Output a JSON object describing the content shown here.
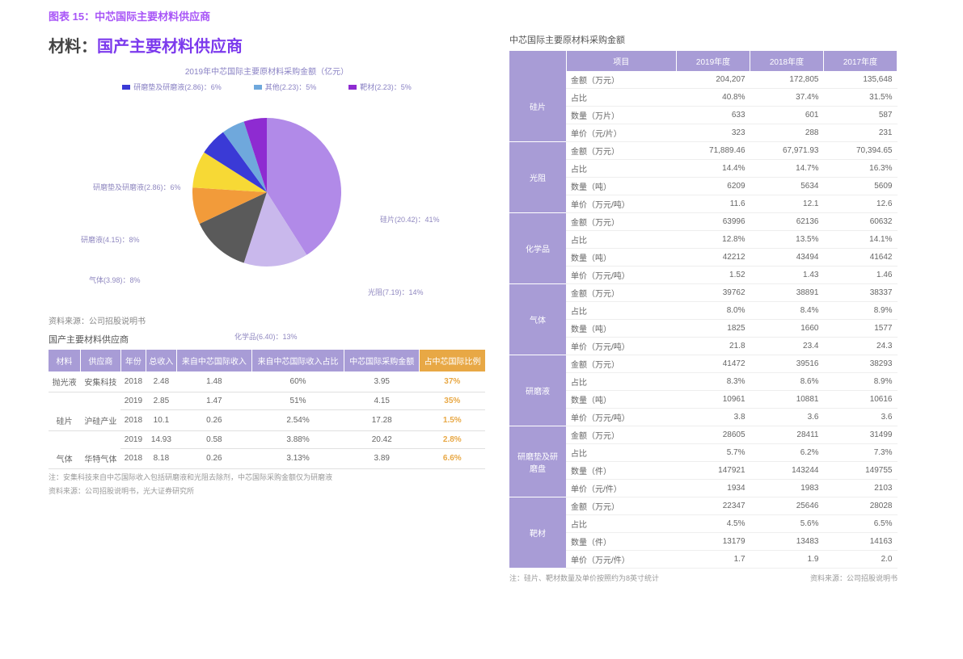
{
  "figure_caption": "图表 15：中芯国际主要材料供应商",
  "section_title_prefix": "材料：",
  "section_title_main": "国产主要材料供应商",
  "pie": {
    "subtitle": "2019年中芯国际主要原材料采购金额（亿元）",
    "type": "pie",
    "background_color": "#ffffff",
    "label_fontsize": 9,
    "label_color": "#8a82c4",
    "slices": [
      {
        "label": "硅片(20.42)：41%",
        "value": 41,
        "color": "#b18ae8"
      },
      {
        "label": "光阻(7.19)：14%",
        "value": 14,
        "color": "#c9b8ec"
      },
      {
        "label": "化学品(6.40)：13%",
        "value": 13,
        "color": "#5a5a5a"
      },
      {
        "label": "气体(3.98)：8%",
        "value": 8,
        "color": "#f29b3a"
      },
      {
        "label": "研磨液(4.15)：8%",
        "value": 8,
        "color": "#f7d935"
      },
      {
        "label": "研磨垫及研磨液(2.86)：6%",
        "value": 6,
        "color": "#3a3ad6"
      },
      {
        "label": "其他(2.23)：5%",
        "value": 5,
        "color": "#6fa8dc"
      },
      {
        "label": "靶材(2.23)：5%",
        "value": 5,
        "color": "#8e2bd1"
      }
    ],
    "source": "资料来源：公司招股说明书"
  },
  "supplier_section_title": "国产主要材料供应商",
  "supplier_table": {
    "columns": [
      "材料",
      "供应商",
      "年份",
      "总收入",
      "来自中芯国际收入",
      "来自中芯国际收入占比",
      "中芯国际采购金额",
      "占中芯国际比例"
    ],
    "rows": [
      {
        "material": "抛光液",
        "supplier": "安集科技",
        "year": "2018",
        "total": "2.48",
        "rev": "1.48",
        "rev_pct": "60%",
        "purchase": "3.95",
        "share": "37%"
      },
      {
        "material": "",
        "supplier": "",
        "year": "2019",
        "total": "2.85",
        "rev": "1.47",
        "rev_pct": "51%",
        "purchase": "4.15",
        "share": "35%"
      },
      {
        "material": "硅片",
        "supplier": "沪硅产业",
        "year": "2018",
        "total": "10.1",
        "rev": "0.26",
        "rev_pct": "2.54%",
        "purchase": "17.28",
        "share": "1.5%"
      },
      {
        "material": "",
        "supplier": "",
        "year": "2019",
        "total": "14.93",
        "rev": "0.58",
        "rev_pct": "3.88%",
        "purchase": "20.42",
        "share": "2.8%"
      },
      {
        "material": "气体",
        "supplier": "华特气体",
        "year": "2018",
        "total": "8.18",
        "rev": "0.26",
        "rev_pct": "3.13%",
        "purchase": "3.89",
        "share": "6.6%"
      }
    ],
    "note1": "注：安集科技来自中芯国际收入包括研磨液和光阻去除剂，中芯国际采购金额仅为研磨液",
    "note2": "资料来源：公司招股说明书，光大证券研究所"
  },
  "right_section_title": "中芯国际主要原材料采购金额",
  "purchase_table": {
    "columns": [
      "项目",
      "2019年度",
      "2018年度",
      "2017年度"
    ],
    "groups": [
      {
        "cat": "硅片",
        "rows": [
          {
            "metric": "金额（万元）",
            "v19": "204,207",
            "v18": "172,805",
            "v17": "135,648"
          },
          {
            "metric": "占比",
            "v19": "40.8%",
            "v18": "37.4%",
            "v17": "31.5%"
          },
          {
            "metric": "数量（万片）",
            "v19": "633",
            "v18": "601",
            "v17": "587"
          },
          {
            "metric": "单价（元/片）",
            "v19": "323",
            "v18": "288",
            "v17": "231"
          }
        ]
      },
      {
        "cat": "光阻",
        "rows": [
          {
            "metric": "金额（万元）",
            "v19": "71,889.46",
            "v18": "67,971.93",
            "v17": "70,394.65"
          },
          {
            "metric": "占比",
            "v19": "14.4%",
            "v18": "14.7%",
            "v17": "16.3%"
          },
          {
            "metric": "数量（吨）",
            "v19": "6209",
            "v18": "5634",
            "v17": "5609"
          },
          {
            "metric": "单价（万元/吨）",
            "v19": "11.6",
            "v18": "12.1",
            "v17": "12.6"
          }
        ]
      },
      {
        "cat": "化学品",
        "rows": [
          {
            "metric": "金额（万元）",
            "v19": "63996",
            "v18": "62136",
            "v17": "60632"
          },
          {
            "metric": "占比",
            "v19": "12.8%",
            "v18": "13.5%",
            "v17": "14.1%"
          },
          {
            "metric": "数量（吨）",
            "v19": "42212",
            "v18": "43494",
            "v17": "41642"
          },
          {
            "metric": "单价（万元/吨）",
            "v19": "1.52",
            "v18": "1.43",
            "v17": "1.46"
          }
        ]
      },
      {
        "cat": "气体",
        "rows": [
          {
            "metric": "金额（万元）",
            "v19": "39762",
            "v18": "38891",
            "v17": "38337"
          },
          {
            "metric": "占比",
            "v19": "8.0%",
            "v18": "8.4%",
            "v17": "8.9%"
          },
          {
            "metric": "数量（吨）",
            "v19": "1825",
            "v18": "1660",
            "v17": "1577"
          },
          {
            "metric": "单价（万元/吨）",
            "v19": "21.8",
            "v18": "23.4",
            "v17": "24.3"
          }
        ]
      },
      {
        "cat": "研磨液",
        "rows": [
          {
            "metric": "金额（万元）",
            "v19": "41472",
            "v18": "39516",
            "v17": "38293"
          },
          {
            "metric": "占比",
            "v19": "8.3%",
            "v18": "8.6%",
            "v17": "8.9%"
          },
          {
            "metric": "数量（吨）",
            "v19": "10961",
            "v18": "10881",
            "v17": "10616"
          },
          {
            "metric": "单价（万元/吨）",
            "v19": "3.8",
            "v18": "3.6",
            "v17": "3.6"
          }
        ]
      },
      {
        "cat": "研磨垫及研磨盘",
        "rows": [
          {
            "metric": "金额（万元）",
            "v19": "28605",
            "v18": "28411",
            "v17": "31499"
          },
          {
            "metric": "占比",
            "v19": "5.7%",
            "v18": "6.2%",
            "v17": "7.3%"
          },
          {
            "metric": "数量（件）",
            "v19": "147921",
            "v18": "143244",
            "v17": "149755"
          },
          {
            "metric": "单价（元/件）",
            "v19": "1934",
            "v18": "1983",
            "v17": "2103"
          }
        ]
      },
      {
        "cat": "靶材",
        "rows": [
          {
            "metric": "金额（万元）",
            "v19": "22347",
            "v18": "25646",
            "v17": "28028"
          },
          {
            "metric": "占比",
            "v19": "4.5%",
            "v18": "5.6%",
            "v17": "6.5%"
          },
          {
            "metric": "数量（件）",
            "v19": "13179",
            "v18": "13483",
            "v17": "14163"
          },
          {
            "metric": "单价（万元/件）",
            "v19": "1.7",
            "v18": "1.9",
            "v17": "2.0"
          }
        ]
      }
    ],
    "note_left": "注：硅片、靶材数量及单价按照约为8英寸统计",
    "note_right": "资料来源：公司招股说明书"
  }
}
